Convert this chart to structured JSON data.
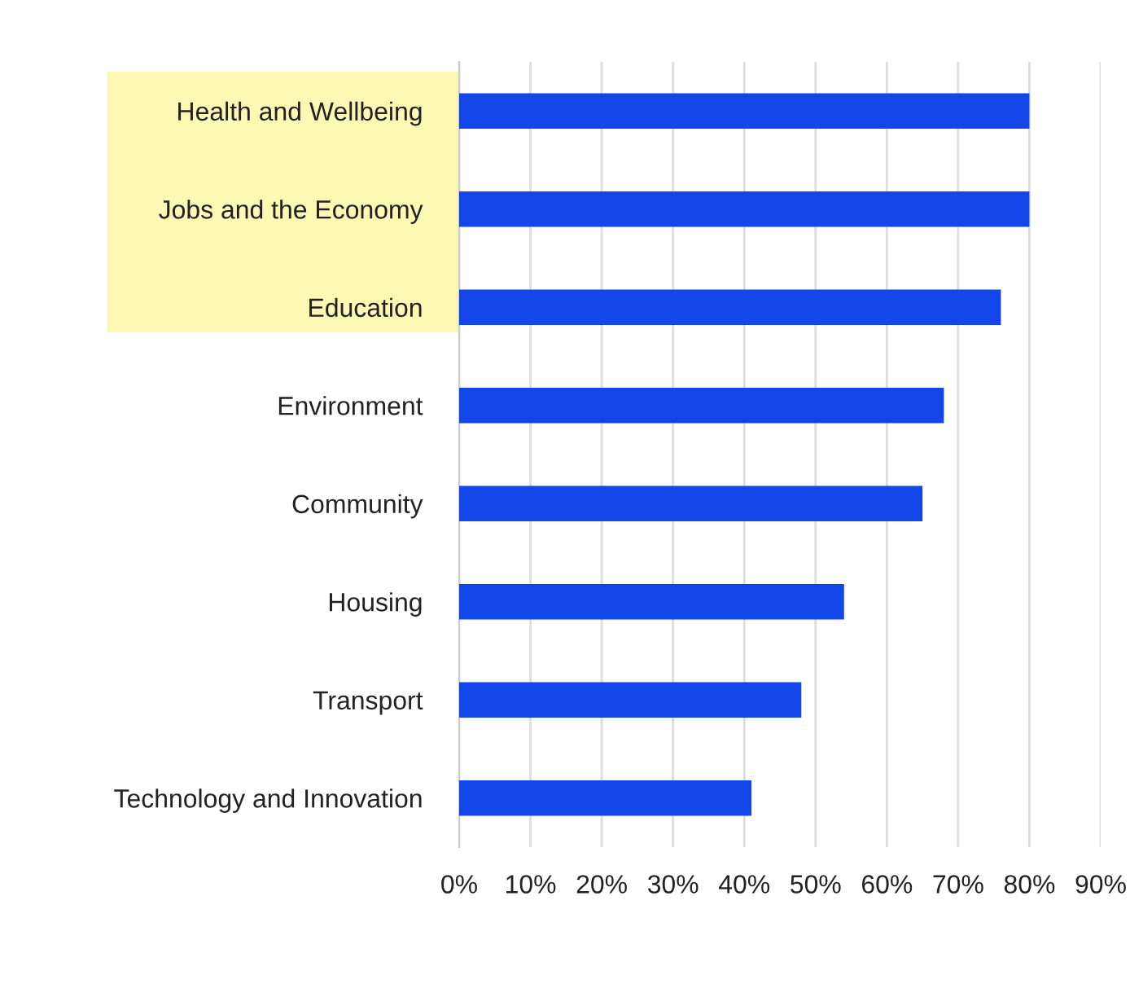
{
  "chart_data": {
    "type": "bar",
    "orientation": "horizontal",
    "categories": [
      "Health and Wellbeing",
      "Jobs and the Economy",
      "Education",
      "Environment",
      "Community",
      "Housing",
      "Transport",
      "Technology and Innovation"
    ],
    "values": [
      80,
      80,
      76,
      68,
      65,
      54,
      48,
      41
    ],
    "color": "#1346e8",
    "xlim": [
      0,
      90
    ],
    "xticks": [
      {
        "value": 0,
        "label": "0%"
      },
      {
        "value": 10,
        "label": "10%"
      },
      {
        "value": 20,
        "label": "20%"
      },
      {
        "value": 30,
        "label": "30%"
      },
      {
        "value": 40,
        "label": "40%"
      },
      {
        "value": 50,
        "label": "50%"
      },
      {
        "value": 60,
        "label": "60%"
      },
      {
        "value": 70,
        "label": "70%"
      },
      {
        "value": 80,
        "label": "80%"
      },
      {
        "value": 90,
        "label": "90%"
      }
    ],
    "grid": "x",
    "legend": false
  }
}
